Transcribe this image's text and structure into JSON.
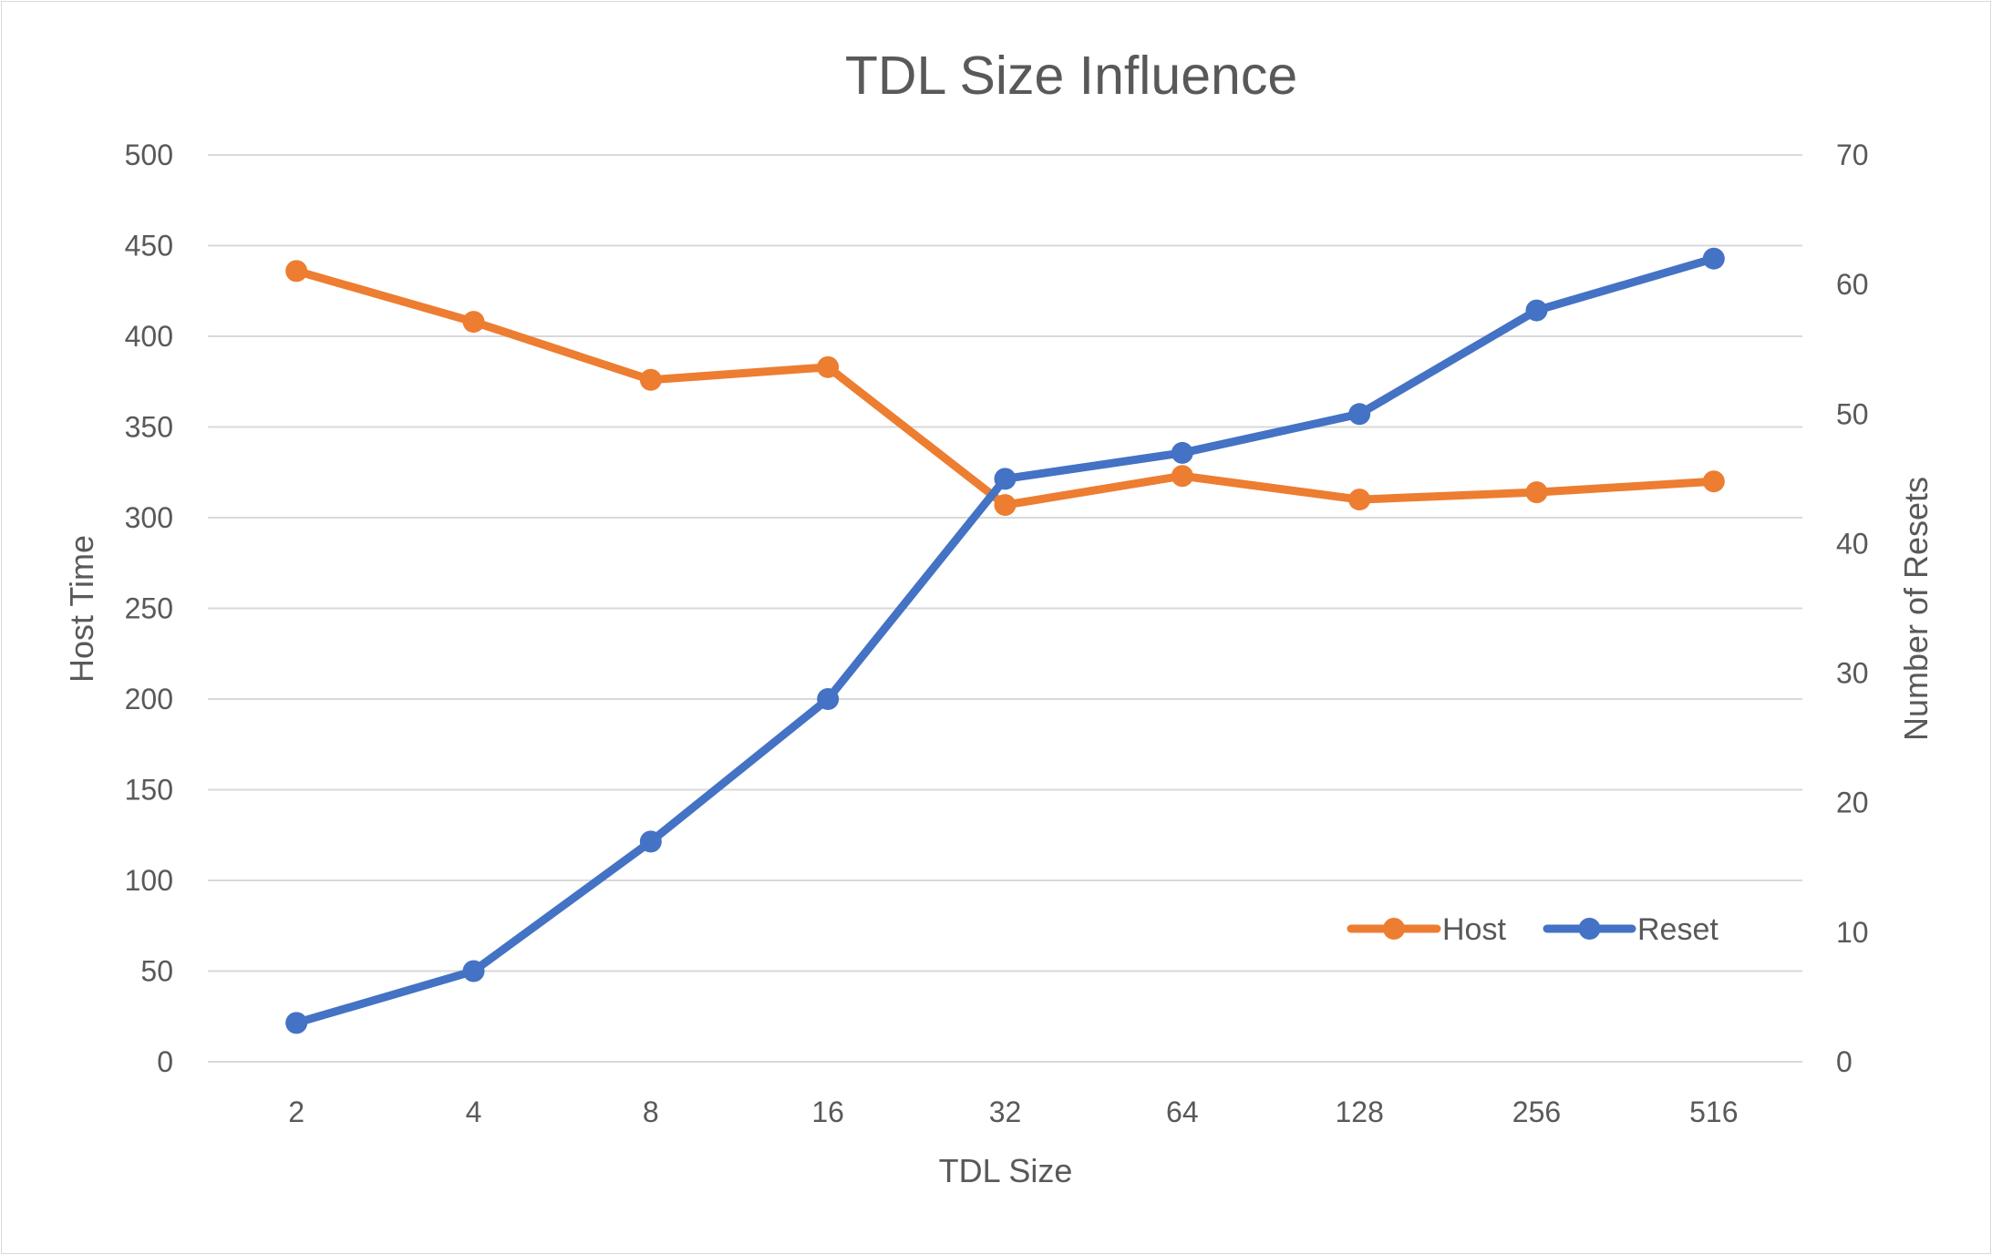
{
  "chart_data": {
    "type": "line",
    "title": "TDL Size Influence",
    "xlabel": "TDL Size",
    "ylabel": "Host Time",
    "y2label": "Number of Resets",
    "categories": [
      "2",
      "4",
      "8",
      "16",
      "32",
      "64",
      "128",
      "256",
      "516"
    ],
    "ylim": [
      0,
      500
    ],
    "y2lim": [
      0,
      70
    ],
    "yticks": [
      "0",
      "50",
      "100",
      "150",
      "200",
      "250",
      "300",
      "350",
      "400",
      "450",
      "500"
    ],
    "y2ticks": [
      "0",
      "10",
      "20",
      "30",
      "40",
      "50",
      "60",
      "70"
    ],
    "grid": true,
    "legend_position": "bottom-right",
    "series": [
      {
        "name": "Host",
        "axis": "left",
        "color": "#ed7d31",
        "values": [
          436,
          408,
          376,
          383,
          307,
          323,
          310,
          314,
          320
        ]
      },
      {
        "name": "Reset",
        "axis": "right",
        "color": "#4472c4",
        "values": [
          3,
          7,
          17,
          28,
          45,
          47,
          50,
          58,
          62
        ]
      }
    ]
  }
}
